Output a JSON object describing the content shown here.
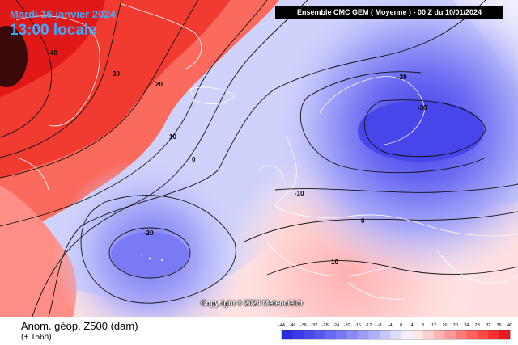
{
  "header": {
    "date": "Mardi 16 janvier 2024",
    "local_time": "13:00 locale",
    "model_run": "Ensemble CMC GEM  ( Moyenne )  -  00 Z du 10/01/2024"
  },
  "copyright": "Copyright © 2024 Meteociel.fr",
  "footer": {
    "field_title": "Anom. géop. Z500 (dam)",
    "lead_time": "(+ 156h)"
  },
  "legend": {
    "ticks": [
      "-44",
      "-40",
      "-36",
      "-32",
      "-28",
      "-24",
      "-20",
      "-16",
      "-12",
      "-8",
      "-4",
      "0",
      "4",
      "8",
      "12",
      "16",
      "20",
      "24",
      "28",
      "32",
      "36",
      "40"
    ],
    "colors": [
      "#2b2be0",
      "#3a3ae6",
      "#4848ec",
      "#5858ef",
      "#6868f2",
      "#7878f4",
      "#8a8af6",
      "#9c9cf8",
      "#b0b0fa",
      "#c6c6fb",
      "#dcdcfd",
      "#f0f0ff",
      "#ffe8e8",
      "#ffd0d0",
      "#ffb4b4",
      "#ff9898",
      "#ff7c7c",
      "#ff6060",
      "#ff4848",
      "#f83030",
      "#e81c1c"
    ]
  },
  "contour_labels": {
    "c40": "40",
    "c30": "30",
    "c20": "20",
    "c10": "10",
    "c0": "0",
    "c_m20_atl": "-20",
    "c_m20_scand": "-20",
    "c_m30": "-30",
    "c_m10": "-10",
    "c0_europe": "0",
    "c10_med": "10"
  }
}
